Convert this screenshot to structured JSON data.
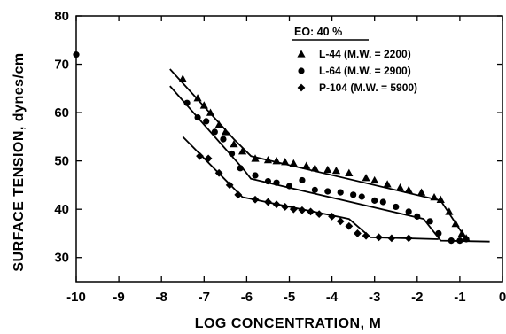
{
  "chart_data": {
    "type": "scatter",
    "xlabel": "LOG CONCENTRATION, M",
    "ylabel": "SURFACE TENSION, dynes/cm",
    "xlim": [
      -10,
      0
    ],
    "ylim": [
      25,
      80
    ],
    "xticks": [
      "-10",
      "-9",
      "-8",
      "-7",
      "-6",
      "-5",
      "-4",
      "-3",
      "-2",
      "-1",
      "0"
    ],
    "yticks": [
      "30",
      "40",
      "50",
      "60",
      "70",
      "80"
    ],
    "legend": {
      "title": "EO: 40 %",
      "placement": "top-right"
    },
    "series": [
      {
        "name": "L-44 (M.W. = 2200)",
        "marker": "triangle",
        "points": [
          [
            -7.5,
            67
          ],
          [
            -7.15,
            63
          ],
          [
            -7.0,
            61.5
          ],
          [
            -6.85,
            60
          ],
          [
            -6.65,
            57.5
          ],
          [
            -6.5,
            56
          ],
          [
            -6.3,
            53.5
          ],
          [
            -6.1,
            52
          ],
          [
            -5.8,
            50.5
          ],
          [
            -5.5,
            50.2
          ],
          [
            -5.3,
            50
          ],
          [
            -5.1,
            49.8
          ],
          [
            -4.9,
            49.5
          ],
          [
            -4.6,
            49
          ],
          [
            -4.4,
            48.5
          ],
          [
            -4.1,
            48.2
          ],
          [
            -3.9,
            48
          ],
          [
            -3.6,
            47.5
          ],
          [
            -3.2,
            46.5
          ],
          [
            -3.0,
            46
          ],
          [
            -2.7,
            45.2
          ],
          [
            -2.4,
            44.5
          ],
          [
            -2.2,
            44
          ],
          [
            -1.9,
            43.5
          ],
          [
            -1.6,
            42.5
          ],
          [
            -1.45,
            42
          ],
          [
            -1.25,
            39.5
          ],
          [
            -1.1,
            37
          ],
          [
            -0.95,
            35
          ],
          [
            -0.85,
            34
          ]
        ],
        "fit": [
          [
            -7.8,
            69
          ],
          [
            -6.3,
            54.5
          ],
          [
            -5.9,
            51
          ],
          [
            -1.45,
            41.8
          ],
          [
            -0.85,
            33.8
          ]
        ]
      },
      {
        "name": "L-64 (M.W. = 2900)",
        "marker": "circle",
        "points": [
          [
            -10.0,
            72
          ],
          [
            -7.4,
            62
          ],
          [
            -7.15,
            59
          ],
          [
            -6.95,
            58.2
          ],
          [
            -6.75,
            56
          ],
          [
            -6.55,
            54.5
          ],
          [
            -6.35,
            51.5
          ],
          [
            -6.15,
            48.5
          ],
          [
            -5.8,
            47
          ],
          [
            -5.5,
            45.8
          ],
          [
            -5.3,
            45.5
          ],
          [
            -5.0,
            44.8
          ],
          [
            -4.7,
            46
          ],
          [
            -4.4,
            44
          ],
          [
            -4.1,
            43.7
          ],
          [
            -3.8,
            43.5
          ],
          [
            -3.5,
            43
          ],
          [
            -3.3,
            42.6
          ],
          [
            -3.0,
            41.8
          ],
          [
            -2.8,
            41.5
          ],
          [
            -2.5,
            40.5
          ],
          [
            -2.2,
            39.5
          ],
          [
            -2.0,
            38.5
          ],
          [
            -1.7,
            37.5
          ],
          [
            -1.5,
            35
          ],
          [
            -1.2,
            33.5
          ],
          [
            -1.0,
            33.5
          ],
          [
            -0.85,
            33.8
          ]
        ],
        "fit": [
          [
            -7.8,
            65.5
          ],
          [
            -6.05,
            48
          ],
          [
            -5.9,
            46.3
          ],
          [
            -1.85,
            38
          ],
          [
            -1.45,
            33.5
          ],
          [
            -0.3,
            33.3
          ]
        ]
      },
      {
        "name": "P-104 (M.W. = 5900)",
        "marker": "diamond",
        "points": [
          [
            -7.1,
            51
          ],
          [
            -6.9,
            50.5
          ],
          [
            -6.65,
            47.5
          ],
          [
            -6.4,
            45
          ],
          [
            -6.2,
            43
          ],
          [
            -5.8,
            42
          ],
          [
            -5.5,
            41.5
          ],
          [
            -5.3,
            41
          ],
          [
            -5.1,
            40.5
          ],
          [
            -4.9,
            40
          ],
          [
            -4.7,
            39.8
          ],
          [
            -4.5,
            39.5
          ],
          [
            -4.3,
            39
          ],
          [
            -4.0,
            38.5
          ],
          [
            -3.8,
            37.5
          ],
          [
            -3.6,
            36.5
          ],
          [
            -3.4,
            35
          ],
          [
            -3.2,
            34.5
          ],
          [
            -2.9,
            34.2
          ],
          [
            -2.6,
            34
          ],
          [
            -2.2,
            34
          ]
        ],
        "fit": [
          [
            -7.5,
            55
          ],
          [
            -6.1,
            42.5
          ],
          [
            -3.6,
            38
          ],
          [
            -3.1,
            34.2
          ],
          [
            -1.5,
            33.8
          ]
        ]
      }
    ]
  }
}
